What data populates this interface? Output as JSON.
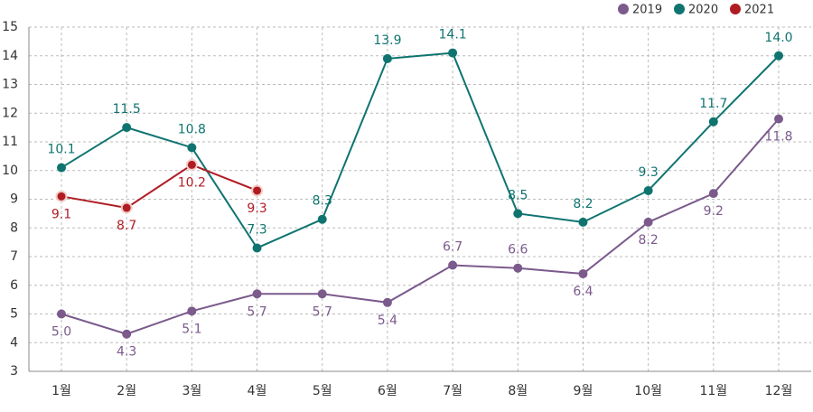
{
  "chart_data": {
    "type": "line",
    "categories": [
      "1월",
      "2월",
      "3월",
      "4월",
      "5월",
      "6월",
      "7월",
      "8월",
      "9월",
      "10월",
      "11월",
      "12월"
    ],
    "series": [
      {
        "name": "2019",
        "color": "#7b5a8c",
        "values": [
          5.0,
          4.3,
          5.1,
          5.7,
          5.7,
          5.4,
          6.7,
          6.6,
          6.4,
          8.2,
          9.2,
          11.8
        ],
        "value_labels": [
          "5.0",
          "4.3",
          "5.1",
          "5.7",
          "5.7",
          "5.4",
          "6.7",
          "6.6",
          "6.4",
          "8.2",
          "9.2",
          "11.8"
        ]
      },
      {
        "name": "2020",
        "color": "#0f7470",
        "values": [
          10.1,
          11.5,
          10.8,
          7.3,
          8.3,
          13.9,
          14.1,
          8.5,
          8.2,
          9.3,
          11.7,
          14.0
        ],
        "value_labels": [
          "10.1",
          "11.5",
          "10.8",
          "7.3",
          "8.3",
          "13.9",
          "14.1",
          "8.5",
          "8.2",
          "9.3",
          "11.7",
          "14.0"
        ]
      },
      {
        "name": "2021",
        "color": "#b01c24",
        "values": [
          9.1,
          8.7,
          10.2,
          9.3,
          null,
          null,
          null,
          null,
          null,
          null,
          null,
          null
        ],
        "value_labels": [
          "9.1",
          "8.7",
          "10.2",
          "9.3",
          null,
          null,
          null,
          null,
          null,
          null,
          null,
          null
        ]
      }
    ],
    "ylim": [
      3,
      15
    ],
    "yticks": [
      3,
      4,
      5,
      6,
      7,
      8,
      9,
      10,
      11,
      12,
      13,
      14,
      15
    ],
    "grid": true,
    "legend": "top-right"
  }
}
